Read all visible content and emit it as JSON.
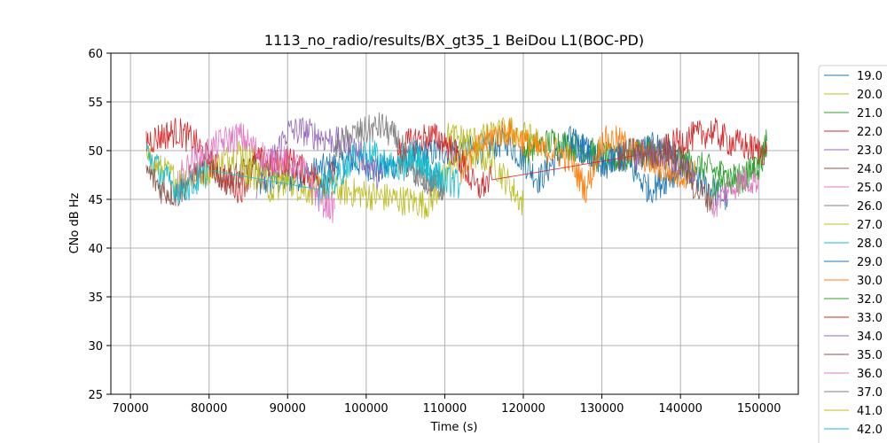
{
  "chart_data": {
    "type": "line",
    "title": "1113_no_radio/results/BX_gt35_1 BeiDou L1(BOC-PD)",
    "xlabel": "Time (s)",
    "ylabel": "CNo dB Hz",
    "xlim": [
      67500,
      155000
    ],
    "ylim": [
      25,
      60
    ],
    "xticks": [
      70000,
      80000,
      90000,
      100000,
      110000,
      120000,
      130000,
      140000,
      150000
    ],
    "yticks": [
      25,
      30,
      35,
      40,
      45,
      50,
      55,
      60
    ],
    "grid": true,
    "legend_position": "right-outside",
    "series": [
      {
        "name": "19.0",
        "color": "#1f77b4",
        "x": [
          86000,
          90000,
          94000,
          98000,
          102000,
          106000,
          110000,
          114000,
          118000,
          122000,
          126000,
          130000,
          134000,
          138000,
          142000,
          146000
        ],
        "y": [
          46.5,
          47,
          48,
          49,
          48,
          49.5,
          50,
          50,
          51,
          47,
          51,
          49,
          50,
          50.5,
          47,
          45
        ]
      },
      {
        "name": "20.0",
        "color": "#bcbd22",
        "x": [
          72000,
          76000,
          80000,
          84000,
          88000,
          92000,
          96000,
          100000,
          104000,
          108000,
          112000,
          116000,
          120000
        ],
        "y": [
          49,
          47,
          48,
          50,
          48,
          46,
          46,
          45.5,
          45,
          44.5,
          50,
          49,
          44.5
        ]
      },
      {
        "name": "21.0",
        "color": "#2ca02c",
        "x": [
          120000,
          124000,
          128000,
          132000,
          136000,
          140000,
          144000,
          148000,
          151000
        ],
        "y": [
          50,
          51,
          50,
          49,
          50,
          49,
          48,
          47,
          50
        ]
      },
      {
        "name": "22.0",
        "color": "#d62728",
        "x": [
          72000,
          74000,
          76000,
          78000,
          80000,
          82000,
          84000,
          86000,
          88000,
          90000,
          92000,
          94000,
          96000
        ],
        "y": [
          51,
          51.5,
          52,
          51,
          49,
          47,
          46,
          49,
          48.5,
          49,
          48,
          47,
          47.5
        ]
      },
      {
        "name": "23.0",
        "color": "#9467bd",
        "x": [
          86000,
          88000,
          90000,
          92000,
          94000,
          96000,
          98000,
          100000,
          102000
        ],
        "y": [
          46,
          49,
          52,
          52,
          51.5,
          51,
          50.5,
          49,
          47
        ]
      },
      {
        "name": "24.0",
        "color": "#8c564b",
        "x": [
          72000,
          74000,
          76000,
          78000,
          80000,
          82000,
          84000,
          86000
        ],
        "y": [
          48,
          46,
          45.5,
          47.5,
          48.5,
          47,
          47.5,
          48
        ]
      },
      {
        "name": "25.0",
        "color": "#e377c2",
        "x": [
          76000,
          78000,
          80000,
          82000,
          84000,
          86000,
          88000,
          90000,
          92000,
          94000,
          96000
        ],
        "y": [
          47,
          49,
          50,
          51,
          51.5,
          50,
          49,
          49,
          48,
          45,
          44
        ]
      },
      {
        "name": "26.0",
        "color": "#7f7f7f",
        "x": [
          96000,
          98000,
          100000,
          102000,
          104000,
          106000,
          108000,
          110000
        ],
        "y": [
          50,
          51.5,
          52,
          52.5,
          51,
          48,
          47,
          46
        ]
      },
      {
        "name": "27.0",
        "color": "#bcbd22",
        "x": [
          110000,
          114000,
          118000,
          122000
        ],
        "y": [
          51.5,
          51,
          52,
          51
        ]
      },
      {
        "name": "28.0",
        "color": "#17becf",
        "x": [
          104000,
          106000,
          108000,
          110000,
          112000
        ],
        "y": [
          48,
          49,
          48,
          47,
          46.5
        ]
      },
      {
        "name": "29.0",
        "color": "#1f77b4",
        "x": [
          126000,
          128000,
          130000,
          132000,
          134000,
          136000,
          138000,
          140000
        ],
        "y": [
          51,
          50,
          48,
          49.5,
          48,
          46,
          47,
          48
        ]
      },
      {
        "name": "30.0",
        "color": "#ff7f0e",
        "x": [
          112000,
          114000,
          116000,
          118000,
          120000,
          122000,
          124000,
          126000,
          128000,
          130000,
          132000,
          134000,
          136000,
          138000,
          140000,
          142000
        ],
        "y": [
          48,
          50,
          51.5,
          52,
          51,
          50,
          50,
          49,
          46,
          51,
          51,
          50,
          49,
          48,
          47.5,
          48
        ]
      },
      {
        "name": "32.0",
        "color": "#2ca02c",
        "x": [
          144000,
          146000,
          148000,
          150000,
          151000
        ],
        "y": [
          46,
          47,
          47,
          48.5,
          51
        ]
      },
      {
        "name": "33.0",
        "color": "#d62728",
        "x": [
          104000,
          106000,
          108000,
          110000,
          112000,
          114000,
          116000,
          138000,
          140000,
          142000,
          144000,
          146000,
          148000,
          150000,
          151000
        ],
        "y": [
          50,
          51,
          51.5,
          51,
          49,
          46,
          47,
          50,
          51,
          51.5,
          52,
          51,
          50.5,
          50,
          50
        ]
      },
      {
        "name": "34.0",
        "color": "#9467bd",
        "x": [
          134000,
          136000,
          138000,
          140000,
          142000
        ],
        "y": [
          49,
          50,
          49.5,
          48,
          47.5
        ]
      },
      {
        "name": "35.0",
        "color": "#8c564b",
        "x": [
          132000,
          134000,
          136000,
          138000,
          140000,
          142000,
          144000
        ],
        "y": [
          49,
          50,
          49.5,
          50,
          49,
          46,
          45
        ]
      },
      {
        "name": "36.0",
        "color": "#e377c2",
        "x": [
          144000,
          146000,
          148000,
          150000
        ],
        "y": [
          44,
          46,
          47,
          47
        ]
      },
      {
        "name": "37.0",
        "color": "#7f7f7f",
        "x": [
          104000,
          106000,
          108000,
          110000
        ],
        "y": [
          49,
          48,
          47,
          46
        ]
      },
      {
        "name": "41.0",
        "color": "#bcbd22",
        "x": [
          84000,
          86000,
          88000,
          90000
        ],
        "y": [
          48,
          47.5,
          46,
          47
        ]
      },
      {
        "name": "42.0",
        "color": "#17becf",
        "x": [
          72000,
          74000,
          76000,
          78000,
          80000,
          94000,
          96000,
          98000,
          100000,
          102000,
          104000,
          106000,
          108000,
          110000
        ],
        "y": [
          50,
          47.5,
          46,
          46.5,
          48,
          46,
          47,
          49,
          50,
          49,
          48,
          50,
          48,
          47
        ]
      }
    ]
  }
}
